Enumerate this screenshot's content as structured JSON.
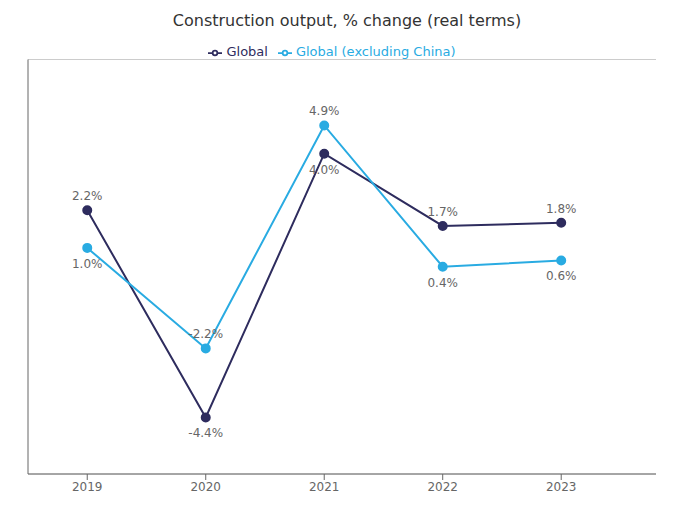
{
  "chart_data": {
    "type": "line",
    "title": "Construction output, % change (real terms)",
    "x": [
      2019,
      2020,
      2021,
      2022,
      2023
    ],
    "series": [
      {
        "name": "Global",
        "color": "#2e2c5e",
        "values": [
          2.2,
          -4.4,
          4.0,
          1.7,
          1.8
        ],
        "value_labels": [
          "2.2%",
          "-4.4%",
          "4.0%",
          "1.7%",
          "1.8%"
        ]
      },
      {
        "name": "Global (excluding China)",
        "color": "#29abe2",
        "values": [
          1.0,
          -2.2,
          4.9,
          0.4,
          0.6
        ],
        "value_labels": [
          "1.0%",
          "-2.2%",
          "4.9%",
          "0.4%",
          "0.6%"
        ]
      }
    ],
    "xlim": [
      2018.5,
      2023.8
    ],
    "xticks": [
      2019,
      2020,
      2021,
      2022,
      2023
    ],
    "ylim": [
      -6.2,
      7.0
    ],
    "yticks": [
      -4,
      -2,
      0,
      2,
      4,
      6
    ],
    "grid": true,
    "legend": "top",
    "data_labels": true,
    "tick_labels": "x",
    "marker": "circle"
  }
}
